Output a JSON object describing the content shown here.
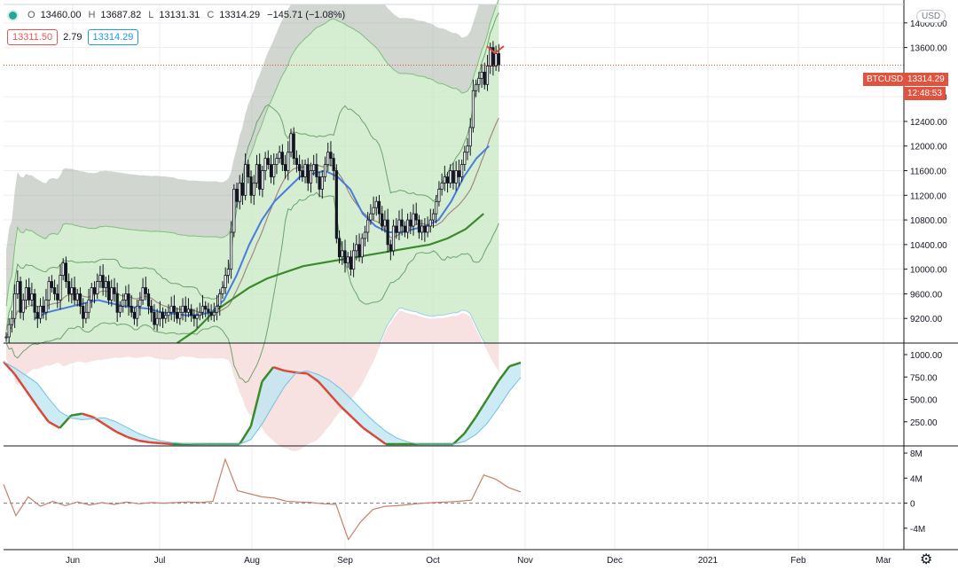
{
  "legend": {
    "open_label": "O",
    "open": "13460.00",
    "high_label": "H",
    "high": "13687.82",
    "low_label": "L",
    "low": "13131.31",
    "close_label": "C",
    "close": "13314.29",
    "change": "−145.71 (−1.08%)"
  },
  "quotes": {
    "bid": "13311.50",
    "spread": "2.79",
    "ask": "13314.29"
  },
  "currency": "USD",
  "symbol_tag": "BTCUSD",
  "price_tag": "13314.29",
  "countdown": "12:48:53",
  "colors": {
    "bull_candle": "#131722",
    "ema_blue": "#4a7bdc",
    "ema_green": "#3a8a2c",
    "band_green": "#c7e8c2",
    "band_red": "#f7dede",
    "osc_fill": "#bfe6f2",
    "osc_line_up": "#3a8a2c",
    "osc_line_down": "#d9493a",
    "volume_line": "#c8806f",
    "accent_red": "#e0533f"
  },
  "chart_data": [
    {
      "type": "line",
      "title": "",
      "x_labels": [
        "Jun",
        "Jul",
        "Aug",
        "Sep",
        "Oct",
        "Nov",
        "Dec",
        "2021",
        "Feb",
        "Mar"
      ],
      "y_ticks": [
        "14000.00",
        "13600.00",
        "12800.00",
        "12400.00",
        "12000.00",
        "11600.00",
        "11200.00",
        "10800.00",
        "10400.00",
        "10000.00",
        "9600.00",
        "9200.00"
      ],
      "ylim": [
        8800,
        14300
      ],
      "candles": {
        "description_x": "days from May 5 2020 to Oct 30 2020",
        "close": [
          8900,
          9100,
          9200,
          9600,
          9800,
          9300,
          9500,
          9700,
          9500,
          9600,
          9300,
          9200,
          9400,
          9300,
          9500,
          9800,
          9700,
          9600,
          9500,
          9900,
          10100,
          9800,
          9600,
          9700,
          9500,
          9600,
          9400,
          9200,
          9300,
          9500,
          9700,
          9600,
          9800,
          9900,
          9700,
          9800,
          9500,
          9700,
          9600,
          9300,
          9400,
          9500,
          9600,
          9400,
          9300,
          9200,
          9400,
          9500,
          9700,
          9600,
          9400,
          9300,
          9100,
          9200,
          9300,
          9200,
          9250,
          9300,
          9400,
          9300,
          9200,
          9300,
          9400,
          9300,
          9350,
          9250,
          9200,
          9250,
          9300,
          9400,
          9350,
          9300,
          9250,
          9300,
          9400,
          9600,
          9700,
          9900,
          10000,
          10600,
          11300,
          11100,
          11400,
          11200,
          11700,
          11500,
          11200,
          11400,
          11700,
          11300,
          11600,
          11800,
          11700,
          11500,
          11700,
          11800,
          11900,
          11700,
          11600,
          11900,
          12200,
          11800,
          11700,
          11600,
          11500,
          11700,
          11400,
          11600,
          11700,
          11500,
          11300,
          11500,
          11700,
          11900,
          11800,
          11600,
          10500,
          10200,
          10300,
          10100,
          10200,
          10000,
          10300,
          10400,
          10200,
          10500,
          10600,
          10800,
          10900,
          11000,
          11100,
          10900,
          10700,
          10800,
          10400,
          10300,
          10700,
          10600,
          10800,
          10700,
          10600,
          10800,
          10700,
          10900,
          10800,
          10600,
          10700,
          10600,
          10700,
          10800,
          10900,
          11100,
          11300,
          11400,
          11500,
          11400,
          11600,
          11400,
          11600,
          11500,
          11700,
          11900,
          12000,
          12300,
          12900,
          13000,
          13100,
          13200,
          13000,
          13300,
          13600,
          13300,
          13500,
          13314
        ]
      },
      "series": [
        {
          "name": "",
          "color": "#4a7bdc",
          "values_start_day": 10,
          "values": [
            9200,
            9300,
            9350,
            9400,
            9450,
            9500,
            9450,
            9400,
            9380,
            9360,
            9300,
            9280,
            9250,
            9260,
            9300,
            9500,
            9900,
            10400,
            10800,
            11100,
            11300,
            11500,
            11550,
            11600,
            11500,
            11300,
            10900,
            10700,
            10600,
            10600,
            10650,
            10700,
            10800,
            11100,
            11500,
            11800,
            12000
          ]
        },
        {
          "name": "",
          "color": "#3a8a2c",
          "values_start_day": 60,
          "values": [
            8800,
            9000,
            9300,
            9500,
            9700,
            9850,
            9950,
            10050,
            10100,
            10150,
            10200,
            10250,
            10300,
            10350,
            10400,
            10500,
            10650,
            10900
          ]
        }
      ]
    },
    {
      "type": "area",
      "title": "",
      "y_ticks": [
        "1000.00",
        "750.00",
        "500.00",
        "250.00"
      ],
      "ylim": [
        0,
        1000
      ],
      "series": [
        {
          "name": "",
          "values": [
            920,
            780,
            600,
            420,
            250,
            180,
            320,
            340,
            300,
            220,
            140,
            80,
            40,
            20,
            10,
            0,
            0,
            0,
            0,
            0,
            0,
            0,
            200,
            700,
            860,
            820,
            800,
            790,
            700,
            560,
            420,
            300,
            180,
            90,
            0,
            0,
            0,
            0,
            0,
            0,
            0,
            120,
            300,
            500,
            700,
            870,
            910
          ]
        }
      ]
    },
    {
      "type": "line",
      "title": "",
      "y_ticks": [
        "8M",
        "4M",
        "0",
        "-4M"
      ],
      "ylim": [
        -6,
        9
      ],
      "series": [
        {
          "name": "",
          "values": [
            3,
            -2,
            1,
            -0.5,
            0.3,
            -0.4,
            0.2,
            -0.3,
            0.1,
            -0.2,
            0.2,
            -0.1,
            0.1,
            0,
            0.1,
            0.2,
            0.1,
            0.3,
            7,
            2,
            1.5,
            1,
            0.8,
            0.3,
            0.2,
            0.1,
            -0.1,
            -0.2,
            -5.8,
            -3,
            -1,
            -0.5,
            -0.4,
            -0.2,
            0,
            0.1,
            0.2,
            0.3,
            0.5,
            4.5,
            3.8,
            2.5,
            1.8
          ]
        }
      ]
    }
  ]
}
